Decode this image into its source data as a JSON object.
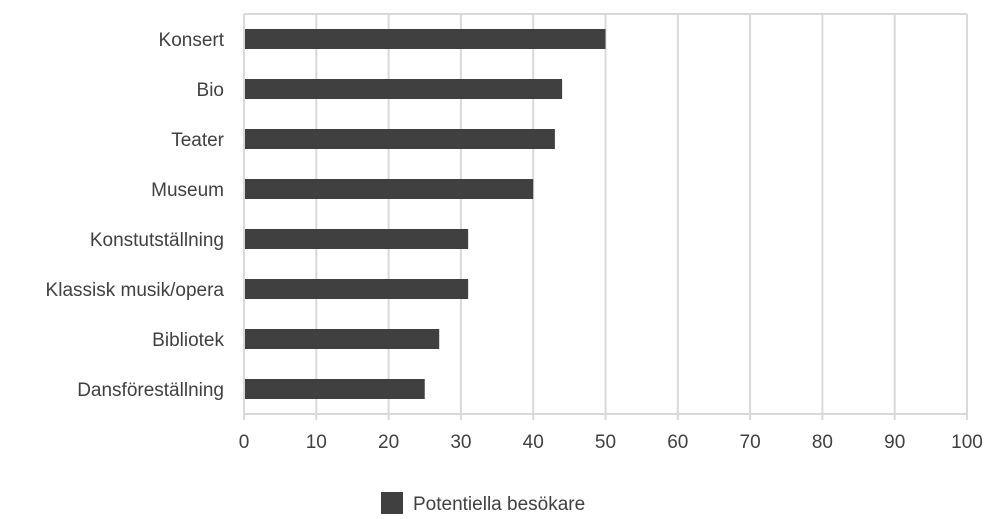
{
  "chart_data": {
    "type": "bar",
    "orientation": "horizontal",
    "categories": [
      "Konsert",
      "Bio",
      "Teater",
      "Museum",
      "Konstutställning",
      "Klassisk musik/opera",
      "Bibliotek",
      "Dansföreställning"
    ],
    "series": [
      {
        "name": "Potentiella besökare",
        "values": [
          50,
          44,
          43,
          40,
          31,
          31,
          27,
          25
        ]
      }
    ],
    "xlim": [
      0,
      100
    ],
    "xticks": [
      0,
      10,
      20,
      30,
      40,
      50,
      60,
      70,
      80,
      90,
      100
    ],
    "xtick_labels": [
      "0",
      "10",
      "20",
      "30",
      "40",
      "50",
      "60",
      "70",
      "80",
      "90",
      "100"
    ],
    "title": "",
    "xlabel": "",
    "ylabel": "",
    "grid": true,
    "legend_position": "bottom",
    "colors": {
      "bar": "#404040",
      "grid": "#d9d9d9",
      "text": "#404040"
    }
  }
}
